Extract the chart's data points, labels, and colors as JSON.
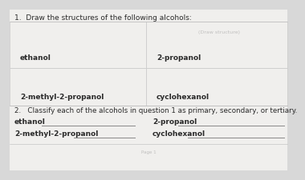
{
  "bg_color": "#d8d8d8",
  "page_color": "#f0efed",
  "title": "1.  Draw the structures of the following alcohols:",
  "question2": "2.   Classify each of the alcohols in question 1 as primary, secondary, or tertiary.",
  "label_ethanol": "ethanol",
  "label_propanol": "2-propanol",
  "label_methyl": "2-methyl-2-propanol",
  "label_cyclo": "cyclohexanol",
  "classify_ethanol": "ethanol",
  "classify_propanol": "2-propanol",
  "classify_methyl": "2-methyl-2-propanol",
  "classify_cyclo": "cyclohexanol",
  "ghost_text": "(Draw structure)",
  "page_num": "Page 1",
  "font_size_title": 6.5,
  "font_size_label": 6.5,
  "font_size_q2": 6.3,
  "font_size_ghost": 4.5,
  "font_size_page": 4.0,
  "text_color": "#2a2a2a",
  "ghost_color": "#c0bfbe",
  "line_color": "#888888",
  "divider_color": "#b0b0b0",
  "box_edge_color": "#c8c8c8",
  "section_line_color": "#bbbbbb"
}
